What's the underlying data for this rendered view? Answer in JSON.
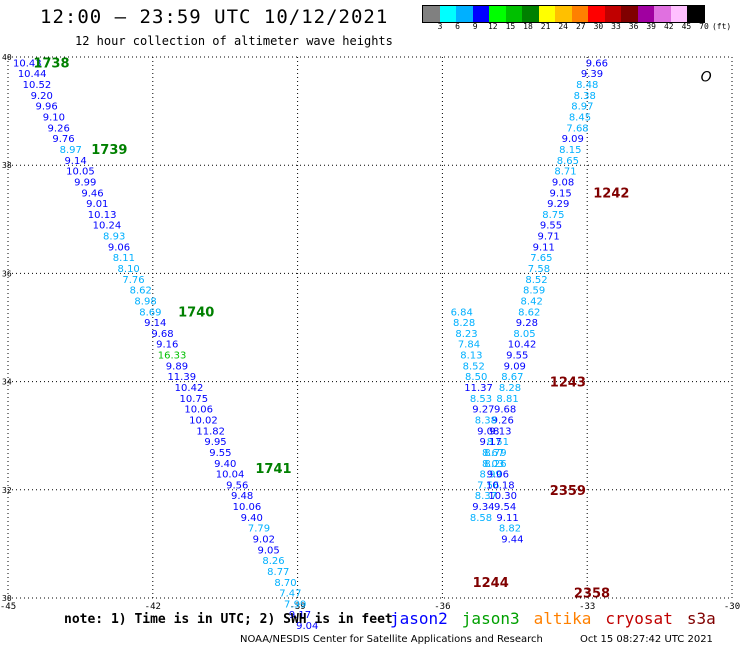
{
  "header": {
    "title": "12:00 – 23:59 UTC 10/12/2021",
    "subtitle": "12 hour collection of altimeter wave heights"
  },
  "legend": {
    "colors": [
      "#808080",
      "#00ffff",
      "#00b0ff",
      "#0000ff",
      "#00ff00",
      "#00c000",
      "#008000",
      "#ffff00",
      "#ffc000",
      "#ff8000",
      "#ff0000",
      "#c00000",
      "#800000",
      "#a000a0",
      "#e070e0",
      "#ffc0ff",
      "#000000"
    ],
    "labels": [
      "3",
      "6",
      "9",
      "12",
      "15",
      "18",
      "21",
      "24",
      "27",
      "30",
      "33",
      "36",
      "39",
      "42",
      "45",
      "70",
      "(ft)"
    ]
  },
  "footer": {
    "note": "note: 1) Time is in UTC; 2) SWH is in feet",
    "satellites": [
      {
        "name": "jason2",
        "color": "#0000ff"
      },
      {
        "name": "jason3",
        "color": "#00a000"
      },
      {
        "name": "altika",
        "color": "#ff8000"
      },
      {
        "name": "cryosat",
        "color": "#c00000"
      },
      {
        "name": "s3a",
        "color": "#800000"
      }
    ],
    "credit": "NOAA/NESDIS Center for Satellite Applications and Research",
    "timestamp": "Oct 15 08:27:42 UTC 2021"
  },
  "chart_data": {
    "type": "scatter",
    "xlim": [
      -45,
      -30
    ],
    "ylim": [
      30,
      40
    ],
    "xticks": [
      -45,
      -42,
      -39,
      -36,
      -33,
      -30
    ],
    "yticks": [
      30,
      32,
      34,
      36,
      38,
      40
    ],
    "grid": true,
    "land_label": "O",
    "series": [
      {
        "track": "west",
        "points": [
          {
            "x": -44.6,
            "y": 39.9,
            "v": "10.43",
            "c": "#0000ff"
          },
          {
            "x": -44.5,
            "y": 39.7,
            "v": "10.44",
            "c": "#0000ff"
          },
          {
            "x": -44.4,
            "y": 39.5,
            "v": "10.52",
            "c": "#0000ff"
          },
          {
            "x": -44.3,
            "y": 39.3,
            "v": "9.20",
            "c": "#0000ff"
          },
          {
            "x": -44.2,
            "y": 39.1,
            "v": "9.96",
            "c": "#0000ff"
          },
          {
            "x": -44.05,
            "y": 38.9,
            "v": "9.10",
            "c": "#0000ff"
          },
          {
            "x": -43.95,
            "y": 38.7,
            "v": "9.26",
            "c": "#0000ff"
          },
          {
            "x": -43.85,
            "y": 38.5,
            "v": "9.76",
            "c": "#0000ff"
          },
          {
            "x": -43.7,
            "y": 38.3,
            "v": "8.97",
            "c": "#00b0ff"
          },
          {
            "x": -43.6,
            "y": 38.1,
            "v": "9.14",
            "c": "#0000ff"
          },
          {
            "x": -43.5,
            "y": 37.9,
            "v": "10.05",
            "c": "#0000ff"
          },
          {
            "x": -43.4,
            "y": 37.7,
            "v": "9.99",
            "c": "#0000ff"
          },
          {
            "x": -43.25,
            "y": 37.5,
            "v": "9.46",
            "c": "#0000ff"
          },
          {
            "x": -43.15,
            "y": 37.3,
            "v": "9.01",
            "c": "#0000ff"
          },
          {
            "x": -43.05,
            "y": 37.1,
            "v": "10.13",
            "c": "#0000ff"
          },
          {
            "x": -42.95,
            "y": 36.9,
            "v": "10.24",
            "c": "#0000ff"
          },
          {
            "x": -42.8,
            "y": 36.7,
            "v": "8.93",
            "c": "#00b0ff"
          },
          {
            "x": -42.7,
            "y": 36.5,
            "v": "9.06",
            "c": "#0000ff"
          },
          {
            "x": -42.6,
            "y": 36.3,
            "v": "8.11",
            "c": "#00b0ff"
          },
          {
            "x": -42.5,
            "y": 36.1,
            "v": "8.10",
            "c": "#00b0ff"
          },
          {
            "x": -42.4,
            "y": 35.9,
            "v": "7.76",
            "c": "#00b0ff"
          },
          {
            "x": -42.25,
            "y": 35.7,
            "v": "8.62",
            "c": "#00b0ff"
          },
          {
            "x": -42.15,
            "y": 35.5,
            "v": "8.98",
            "c": "#00b0ff"
          },
          {
            "x": -42.05,
            "y": 35.3,
            "v": "8.69",
            "c": "#00b0ff"
          },
          {
            "x": -41.95,
            "y": 35.1,
            "v": "9.14",
            "c": "#0000ff"
          },
          {
            "x": -41.8,
            "y": 34.9,
            "v": "9.68",
            "c": "#0000ff"
          },
          {
            "x": -41.7,
            "y": 34.7,
            "v": "9.16",
            "c": "#0000ff"
          },
          {
            "x": -41.6,
            "y": 34.5,
            "v": "16.33",
            "c": "#00c000"
          },
          {
            "x": -41.5,
            "y": 34.3,
            "v": "9.89",
            "c": "#0000ff"
          },
          {
            "x": -41.4,
            "y": 34.1,
            "v": "11.39",
            "c": "#0000ff"
          },
          {
            "x": -41.25,
            "y": 33.9,
            "v": "10.42",
            "c": "#0000ff"
          },
          {
            "x": -41.15,
            "y": 33.7,
            "v": "10.75",
            "c": "#0000ff"
          },
          {
            "x": -41.05,
            "y": 33.5,
            "v": "10.06",
            "c": "#0000ff"
          },
          {
            "x": -40.95,
            "y": 33.3,
            "v": "10.02",
            "c": "#0000ff"
          },
          {
            "x": -40.8,
            "y": 33.1,
            "v": "11.82",
            "c": "#0000ff"
          },
          {
            "x": -40.7,
            "y": 32.9,
            "v": "9.95",
            "c": "#0000ff"
          },
          {
            "x": -40.6,
            "y": 32.7,
            "v": "9.55",
            "c": "#0000ff"
          },
          {
            "x": -40.5,
            "y": 32.5,
            "v": "9.40",
            "c": "#0000ff"
          },
          {
            "x": -40.4,
            "y": 32.3,
            "v": "10.04",
            "c": "#0000ff"
          },
          {
            "x": -40.25,
            "y": 32.1,
            "v": "9.56",
            "c": "#0000ff"
          },
          {
            "x": -40.15,
            "y": 31.9,
            "v": "9.48",
            "c": "#0000ff"
          },
          {
            "x": -40.05,
            "y": 31.7,
            "v": "10.06",
            "c": "#0000ff"
          },
          {
            "x": -39.95,
            "y": 31.5,
            "v": "9.40",
            "c": "#0000ff"
          },
          {
            "x": -39.8,
            "y": 31.3,
            "v": "7.79",
            "c": "#00b0ff"
          },
          {
            "x": -39.7,
            "y": 31.1,
            "v": "9.02",
            "c": "#0000ff"
          },
          {
            "x": -39.6,
            "y": 30.9,
            "v": "9.05",
            "c": "#0000ff"
          },
          {
            "x": -39.5,
            "y": 30.7,
            "v": "8.26",
            "c": "#00b0ff"
          },
          {
            "x": -39.4,
            "y": 30.5,
            "v": "8.77",
            "c": "#00b0ff"
          },
          {
            "x": -39.25,
            "y": 30.3,
            "v": "8.70",
            "c": "#00b0ff"
          },
          {
            "x": -39.15,
            "y": 30.1,
            "v": "7.47",
            "c": "#00b0ff"
          },
          {
            "x": -39.05,
            "y": 29.9,
            "v": "7.99",
            "c": "#00b0ff"
          },
          {
            "x": -38.95,
            "y": 29.7,
            "v": "9.17",
            "c": "#0000ff"
          },
          {
            "x": -38.8,
            "y": 29.5,
            "v": "9.04",
            "c": "#0000ff"
          }
        ]
      },
      {
        "track": "east",
        "points": [
          {
            "x": -32.8,
            "y": 39.9,
            "v": "9.66",
            "c": "#0000ff"
          },
          {
            "x": -32.9,
            "y": 39.7,
            "v": "9.39",
            "c": "#0000ff"
          },
          {
            "x": -33.0,
            "y": 39.5,
            "v": "8.48",
            "c": "#00b0ff"
          },
          {
            "x": -33.05,
            "y": 39.3,
            "v": "8.38",
            "c": "#00b0ff"
          },
          {
            "x": -33.1,
            "y": 39.1,
            "v": "8.97",
            "c": "#00b0ff"
          },
          {
            "x": -33.15,
            "y": 38.9,
            "v": "8.45",
            "c": "#00b0ff"
          },
          {
            "x": -33.2,
            "y": 38.7,
            "v": "7.68",
            "c": "#00b0ff"
          },
          {
            "x": -33.3,
            "y": 38.5,
            "v": "9.09",
            "c": "#0000ff"
          },
          {
            "x": -33.35,
            "y": 38.3,
            "v": "8.15",
            "c": "#00b0ff"
          },
          {
            "x": -33.4,
            "y": 38.1,
            "v": "8.65",
            "c": "#00b0ff"
          },
          {
            "x": -33.45,
            "y": 37.9,
            "v": "8.71",
            "c": "#00b0ff"
          },
          {
            "x": -33.5,
            "y": 37.7,
            "v": "9.08",
            "c": "#0000ff"
          },
          {
            "x": -33.55,
            "y": 37.5,
            "v": "9.15",
            "c": "#0000ff"
          },
          {
            "x": -33.6,
            "y": 37.3,
            "v": "9.29",
            "c": "#0000ff"
          },
          {
            "x": -33.7,
            "y": 37.1,
            "v": "8.75",
            "c": "#00b0ff"
          },
          {
            "x": -33.75,
            "y": 36.9,
            "v": "9.55",
            "c": "#0000ff"
          },
          {
            "x": -33.8,
            "y": 36.7,
            "v": "9.71",
            "c": "#0000ff"
          },
          {
            "x": -33.9,
            "y": 36.5,
            "v": "9.11",
            "c": "#0000ff"
          },
          {
            "x": -33.95,
            "y": 36.3,
            "v": "7.65",
            "c": "#00b0ff"
          },
          {
            "x": -34.0,
            "y": 36.1,
            "v": "7.58",
            "c": "#00b0ff"
          },
          {
            "x": -34.05,
            "y": 35.9,
            "v": "8.52",
            "c": "#00b0ff"
          },
          {
            "x": -34.1,
            "y": 35.7,
            "v": "8.59",
            "c": "#00b0ff"
          },
          {
            "x": -34.15,
            "y": 35.5,
            "v": "8.42",
            "c": "#00b0ff"
          },
          {
            "x": -34.2,
            "y": 35.3,
            "v": "8.62",
            "c": "#00b0ff"
          },
          {
            "x": -34.25,
            "y": 35.1,
            "v": "9.28",
            "c": "#0000ff"
          },
          {
            "x": -34.3,
            "y": 34.9,
            "v": "8.05",
            "c": "#00b0ff"
          },
          {
            "x": -34.35,
            "y": 34.7,
            "v": "10.42",
            "c": "#0000ff"
          },
          {
            "x": -34.45,
            "y": 34.5,
            "v": "9.55",
            "c": "#0000ff"
          },
          {
            "x": -34.5,
            "y": 34.3,
            "v": "9.09",
            "c": "#0000ff"
          },
          {
            "x": -34.55,
            "y": 34.1,
            "v": "8.67",
            "c": "#00b0ff"
          },
          {
            "x": -34.6,
            "y": 33.9,
            "v": "8.28",
            "c": "#00b0ff"
          },
          {
            "x": -34.65,
            "y": 33.7,
            "v": "8.81",
            "c": "#00b0ff"
          },
          {
            "x": -34.7,
            "y": 33.5,
            "v": "9.68",
            "c": "#0000ff"
          },
          {
            "x": -34.75,
            "y": 33.3,
            "v": "9.26",
            "c": "#0000ff"
          },
          {
            "x": -34.8,
            "y": 33.1,
            "v": "9.13",
            "c": "#0000ff"
          },
          {
            "x": -34.85,
            "y": 32.9,
            "v": "8.51",
            "c": "#00b0ff"
          },
          {
            "x": -34.9,
            "y": 32.7,
            "v": "8.79",
            "c": "#00b0ff"
          },
          {
            "x": -34.95,
            "y": 32.5,
            "v": "8.03",
            "c": "#00b0ff"
          },
          {
            "x": -35.0,
            "y": 32.3,
            "v": "8.99",
            "c": "#00b0ff"
          },
          {
            "x": -35.05,
            "y": 32.1,
            "v": "7.56",
            "c": "#00b0ff"
          },
          {
            "x": -35.1,
            "y": 31.9,
            "v": "8.37",
            "c": "#00b0ff"
          },
          {
            "x": -35.15,
            "y": 31.7,
            "v": "9.34",
            "c": "#0000ff"
          },
          {
            "x": -35.2,
            "y": 31.5,
            "v": "8.58",
            "c": "#00b0ff"
          }
        ]
      },
      {
        "track": "middle",
        "points": [
          {
            "x": -35.6,
            "y": 35.3,
            "v": "6.84",
            "c": "#00b0ff"
          },
          {
            "x": -35.55,
            "y": 35.1,
            "v": "8.28",
            "c": "#00b0ff"
          },
          {
            "x": -35.5,
            "y": 34.9,
            "v": "8.23",
            "c": "#00b0ff"
          },
          {
            "x": -35.45,
            "y": 34.7,
            "v": "7.84",
            "c": "#00b0ff"
          },
          {
            "x": -35.4,
            "y": 34.5,
            "v": "8.13",
            "c": "#00b0ff"
          },
          {
            "x": -35.35,
            "y": 34.3,
            "v": "8.52",
            "c": "#00b0ff"
          },
          {
            "x": -35.3,
            "y": 34.1,
            "v": "8.50",
            "c": "#00b0ff"
          },
          {
            "x": -35.25,
            "y": 33.9,
            "v": "11.37",
            "c": "#0000ff"
          },
          {
            "x": -35.2,
            "y": 33.7,
            "v": "8.53",
            "c": "#00b0ff"
          },
          {
            "x": -35.15,
            "y": 33.5,
            "v": "9.27",
            "c": "#0000ff"
          },
          {
            "x": -35.1,
            "y": 33.3,
            "v": "8.38",
            "c": "#00b0ff"
          },
          {
            "x": -35.05,
            "y": 33.1,
            "v": "9.08",
            "c": "#0000ff"
          },
          {
            "x": -35.0,
            "y": 32.9,
            "v": "9.17",
            "c": "#0000ff"
          },
          {
            "x": -34.95,
            "y": 32.7,
            "v": "8.67",
            "c": "#00b0ff"
          },
          {
            "x": -34.9,
            "y": 32.5,
            "v": "8.26",
            "c": "#00b0ff"
          },
          {
            "x": -34.85,
            "y": 32.3,
            "v": "9.06",
            "c": "#0000ff"
          },
          {
            "x": -34.8,
            "y": 32.1,
            "v": "10.18",
            "c": "#0000ff"
          },
          {
            "x": -34.75,
            "y": 31.9,
            "v": "10.30",
            "c": "#0000ff"
          },
          {
            "x": -34.7,
            "y": 31.7,
            "v": "9.54",
            "c": "#0000ff"
          },
          {
            "x": -34.65,
            "y": 31.5,
            "v": "9.11",
            "c": "#0000ff"
          },
          {
            "x": -34.6,
            "y": 31.3,
            "v": "8.82",
            "c": "#00b0ff"
          },
          {
            "x": -34.55,
            "y": 31.1,
            "v": "9.44",
            "c": "#0000ff"
          }
        ]
      }
    ],
    "time_labels": [
      {
        "x": -44.1,
        "y": 39.9,
        "t": "1738",
        "c": "#008000"
      },
      {
        "x": -42.9,
        "y": 38.3,
        "t": "1739",
        "c": "#008000"
      },
      {
        "x": -41.1,
        "y": 35.3,
        "t": "1740",
        "c": "#008000"
      },
      {
        "x": -39.5,
        "y": 32.4,
        "t": "1741",
        "c": "#008000"
      },
      {
        "x": -32.5,
        "y": 37.5,
        "t": "1242",
        "c": "#800000"
      },
      {
        "x": -33.4,
        "y": 34.0,
        "t": "1243",
        "c": "#800000"
      },
      {
        "x": -33.4,
        "y": 32.0,
        "t": "2359",
        "c": "#800000"
      },
      {
        "x": -35.0,
        "y": 30.3,
        "t": "1244",
        "c": "#800000"
      },
      {
        "x": -32.9,
        "y": 30.1,
        "t": "2358",
        "c": "#800000"
      }
    ]
  }
}
